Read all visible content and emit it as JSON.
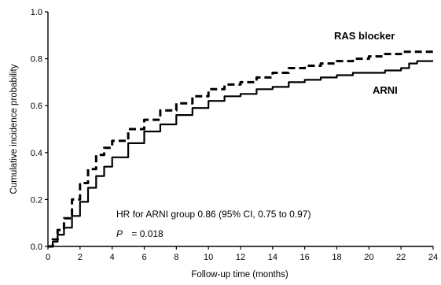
{
  "chart_data": {
    "type": "line",
    "title": "",
    "xlabel": "Follow-up time (months)",
    "ylabel": "Cumulative incidence probability",
    "xlim": [
      0,
      24
    ],
    "ylim": [
      0,
      1.0
    ],
    "x_ticks": [
      "0",
      "2",
      "4",
      "6",
      "8",
      "10",
      "12",
      "14",
      "16",
      "18",
      "20",
      "22",
      "24"
    ],
    "y_ticks": [
      "0.0",
      "0.2",
      "0.4",
      "0.6",
      "0.8",
      "1.0"
    ],
    "grid": false,
    "series": [
      {
        "name": "RAS blocker",
        "style": "dashed",
        "color": "#000000",
        "points": [
          [
            0,
            0
          ],
          [
            0.3,
            0.03
          ],
          [
            0.6,
            0.07
          ],
          [
            1.0,
            0.12
          ],
          [
            1.5,
            0.2
          ],
          [
            2.0,
            0.27
          ],
          [
            2.5,
            0.33
          ],
          [
            3.0,
            0.39
          ],
          [
            3.5,
            0.42
          ],
          [
            4.0,
            0.45
          ],
          [
            5.0,
            0.5
          ],
          [
            6.0,
            0.54
          ],
          [
            7.0,
            0.58
          ],
          [
            8.0,
            0.61
          ],
          [
            9.0,
            0.64
          ],
          [
            10.0,
            0.67
          ],
          [
            11.0,
            0.69
          ],
          [
            12.0,
            0.7
          ],
          [
            13.0,
            0.72
          ],
          [
            14.0,
            0.74
          ],
          [
            15.0,
            0.76
          ],
          [
            16.0,
            0.77
          ],
          [
            17.0,
            0.78
          ],
          [
            18.0,
            0.79
          ],
          [
            19.0,
            0.8
          ],
          [
            20.0,
            0.81
          ],
          [
            21.0,
            0.82
          ],
          [
            22.0,
            0.83
          ],
          [
            23.0,
            0.83
          ],
          [
            24.0,
            0.84
          ]
        ]
      },
      {
        "name": "ARNI",
        "style": "solid",
        "color": "#000000",
        "points": [
          [
            0,
            0
          ],
          [
            0.3,
            0.02
          ],
          [
            0.6,
            0.05
          ],
          [
            1.0,
            0.08
          ],
          [
            1.5,
            0.13
          ],
          [
            2.0,
            0.19
          ],
          [
            2.5,
            0.25
          ],
          [
            3.0,
            0.3
          ],
          [
            3.5,
            0.34
          ],
          [
            4.0,
            0.38
          ],
          [
            5.0,
            0.44
          ],
          [
            6.0,
            0.49
          ],
          [
            7.0,
            0.52
          ],
          [
            8.0,
            0.56
          ],
          [
            9.0,
            0.59
          ],
          [
            10.0,
            0.62
          ],
          [
            11.0,
            0.64
          ],
          [
            12.0,
            0.65
          ],
          [
            13.0,
            0.67
          ],
          [
            14.0,
            0.68
          ],
          [
            15.0,
            0.7
          ],
          [
            16.0,
            0.71
          ],
          [
            17.0,
            0.72
          ],
          [
            18.0,
            0.73
          ],
          [
            19.0,
            0.74
          ],
          [
            20.0,
            0.74
          ],
          [
            21.0,
            0.75
          ],
          [
            22.0,
            0.76
          ],
          [
            22.5,
            0.78
          ],
          [
            23.0,
            0.79
          ],
          [
            24.0,
            0.79
          ]
        ]
      }
    ],
    "annotations": {
      "hr_text": "HR for ARNI group 0.86 (95% CI, 0.75 to 0.97)",
      "p_symbol": "P",
      "p_value": "= 0.018"
    }
  }
}
